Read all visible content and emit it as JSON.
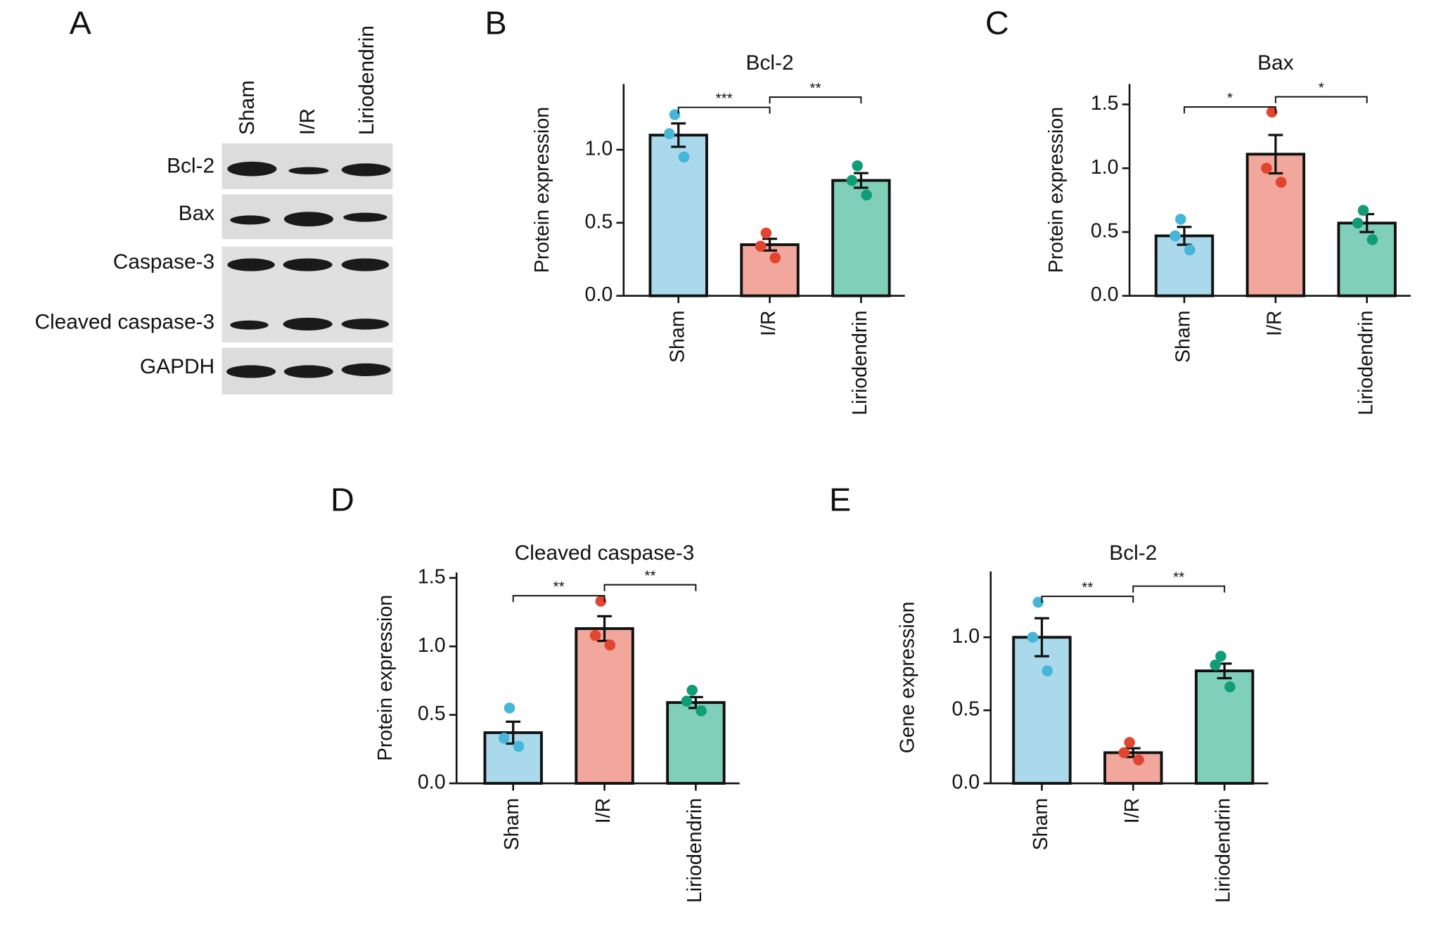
{
  "panel_labels": [
    "A",
    "B",
    "C",
    "D",
    "E"
  ],
  "blot": {
    "lanes": [
      "Sham",
      "I/R",
      "Liriodendrin"
    ],
    "rows": [
      "Bcl-2",
      "Bax",
      "Caspase-3",
      "Cleaved caspase-3",
      "GAPDH"
    ]
  },
  "chart_data": [
    {
      "type": "bar",
      "title": "Bcl-2",
      "ylabel": "Protein expression",
      "categories": [
        "Sham",
        "I/R",
        "Liriodendrin"
      ],
      "values": [
        1.1,
        0.35,
        0.79
      ],
      "errors": [
        0.08,
        0.04,
        0.05
      ],
      "points": [
        [
          1.24,
          1.11,
          0.95
        ],
        [
          0.43,
          0.34,
          0.26
        ],
        [
          0.89,
          0.79,
          0.69
        ]
      ],
      "colors": [
        "#a9d9ea",
        "#f1a79b",
        "#80d0b9"
      ],
      "point_colors": [
        "#45b6d8",
        "#e2452f",
        "#119c78"
      ],
      "ylim": [
        0,
        1.45
      ],
      "yticks": [
        {
          "value": 0,
          "label": "0.0"
        },
        0.5,
        {
          "value": 1,
          "label": "1.0"
        }
      ],
      "significance": [
        {
          "from": 0,
          "to": 1,
          "y": 1.29,
          "label": "***"
        },
        {
          "from": 1,
          "to": 2,
          "y": 1.36,
          "label": "**"
        }
      ]
    },
    {
      "type": "bar",
      "title": "Bax",
      "ylabel": "Protein expression",
      "categories": [
        "Sham",
        "I/R",
        "Liriodendrin"
      ],
      "values": [
        0.47,
        1.11,
        0.57
      ],
      "errors": [
        0.07,
        0.15,
        0.07
      ],
      "points": [
        [
          0.6,
          0.47,
          0.36
        ],
        [
          1.44,
          1.0,
          0.89
        ],
        [
          0.67,
          0.57,
          0.44
        ]
      ],
      "colors": [
        "#a9d9ea",
        "#f1a79b",
        "#80d0b9"
      ],
      "point_colors": [
        "#45b6d8",
        "#e2452f",
        "#119c78"
      ],
      "ylim": [
        0,
        1.66
      ],
      "yticks": [
        {
          "value": 0,
          "label": "0.0"
        },
        0.5,
        {
          "value": 1,
          "label": "1.0"
        },
        1.5
      ],
      "significance": [
        {
          "from": 0,
          "to": 1,
          "y": 1.48,
          "label": "*"
        },
        {
          "from": 1,
          "to": 2,
          "y": 1.56,
          "label": "*"
        }
      ]
    },
    {
      "type": "bar",
      "title": "Cleaved caspase-3",
      "ylabel": "Protein expression",
      "categories": [
        "Sham",
        "I/R",
        "Liriodendrin"
      ],
      "values": [
        0.37,
        1.13,
        0.59
      ],
      "errors": [
        0.08,
        0.09,
        0.04
      ],
      "points": [
        [
          0.55,
          0.33,
          0.27
        ],
        [
          1.33,
          1.08,
          1.01
        ],
        [
          0.68,
          0.6,
          0.53
        ]
      ],
      "colors": [
        "#a9d9ea",
        "#f1a79b",
        "#80d0b9"
      ],
      "point_colors": [
        "#45b6d8",
        "#e2452f",
        "#119c78"
      ],
      "ylim": [
        0,
        1.54
      ],
      "yticks": [
        {
          "value": 0,
          "label": "0.0"
        },
        0.5,
        {
          "value": 1,
          "label": "1.0"
        },
        1.5
      ],
      "significance": [
        {
          "from": 0,
          "to": 1,
          "y": 1.37,
          "label": "**"
        },
        {
          "from": 1,
          "to": 2,
          "y": 1.45,
          "label": "**"
        }
      ]
    },
    {
      "type": "bar",
      "title": "Bcl-2",
      "ylabel": "Gene expression",
      "categories": [
        "Sham",
        "I/R",
        "Liriodendrin"
      ],
      "values": [
        1.0,
        0.21,
        0.77
      ],
      "errors": [
        0.13,
        0.03,
        0.05
      ],
      "points": [
        [
          1.24,
          1.0,
          0.77
        ],
        [
          0.28,
          0.21,
          0.16
        ],
        [
          0.87,
          0.81,
          0.66
        ]
      ],
      "colors": [
        "#a9d9ea",
        "#f1a79b",
        "#80d0b9"
      ],
      "point_colors": [
        "#45b6d8",
        "#e2452f",
        "#119c78"
      ],
      "ylim": [
        0,
        1.45
      ],
      "yticks": [
        {
          "value": 0,
          "label": "0.0"
        },
        0.5,
        {
          "value": 1,
          "label": "1.0"
        }
      ],
      "significance": [
        {
          "from": 0,
          "to": 1,
          "y": 1.28,
          "label": "**"
        },
        {
          "from": 1,
          "to": 2,
          "y": 1.35,
          "label": "**"
        }
      ]
    }
  ]
}
